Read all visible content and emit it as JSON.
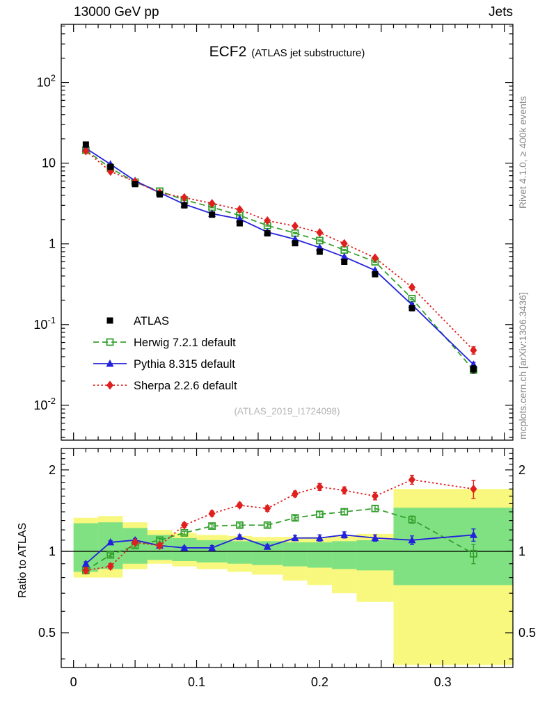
{
  "page": {
    "header_left": "13000 GeV pp",
    "header_right": "Jets",
    "side_top": "Rivet 4.1.0, ≥ 400k events",
    "side_bottom": "mcplots.cern.ch [arXiv:1306.3436]",
    "watermark": "(ATLAS_2019_I1724098)"
  },
  "chart_data": {
    "type": "line",
    "title": "ECF2",
    "subtitle": "(ATLAS jet substructure)",
    "x_range": [
      -0.01,
      0.357
    ],
    "x_minor_step": 0.01,
    "x_major_every": 5,
    "x_ticks": [
      {
        "v": 0,
        "label": "0"
      },
      {
        "v": 0.1,
        "label": "0.1"
      },
      {
        "v": 0.2,
        "label": "0.2"
      },
      {
        "v": 0.3,
        "label": "0.3"
      }
    ],
    "main_panel": {
      "ylog": true,
      "y_range": [
        0.0037,
        525
      ],
      "y_ticks": [
        {
          "v": 100,
          "label": "10^2"
        },
        {
          "v": 10,
          "label": "10"
        },
        {
          "v": 1,
          "label": "1"
        },
        {
          "v": 0.1,
          "label": "10^-1"
        },
        {
          "v": 0.01,
          "label": "10^-2"
        }
      ]
    },
    "ratio_panel": {
      "ylabel": "Ratio to ATLAS",
      "ylog": true,
      "y_range": [
        0.372,
        2.4
      ],
      "reference_y": 1,
      "y_ticks": [
        {
          "v": 2,
          "label": "2"
        },
        {
          "v": 1,
          "label": "1"
        },
        {
          "v": 0.5,
          "label": "0.5"
        }
      ],
      "y_minor_ticks": [
        0.4,
        0.6,
        0.7,
        0.8,
        0.9,
        1.1,
        1.2,
        1.3,
        1.4,
        1.5,
        1.6,
        1.7,
        1.8,
        1.9,
        2.1,
        2.2,
        2.3
      ]
    },
    "x": [
      0.01,
      0.03,
      0.05,
      0.07,
      0.09,
      0.1125,
      0.135,
      0.1575,
      0.18,
      0.2,
      0.22,
      0.245,
      0.275,
      0.325
    ],
    "series": [
      {
        "name": "ATLAS",
        "color": "#000000",
        "marker": "square-filled",
        "line": "none",
        "values": [
          17,
          9.0,
          5.5,
          4.1,
          3.0,
          2.3,
          1.8,
          1.35,
          1.02,
          0.8,
          0.6,
          0.42,
          0.16,
          0.028
        ],
        "errors": [
          1.0,
          0.5,
          0.3,
          0.25,
          0.18,
          0.13,
          0.1,
          0.08,
          0.06,
          0.05,
          0.04,
          0.03,
          0.012,
          0.003
        ],
        "ratio": [
          1,
          1,
          1,
          1,
          1,
          1,
          1,
          1,
          1,
          1,
          1,
          1,
          1,
          1
        ],
        "ratio_errors": [
          0,
          0,
          0,
          0,
          0,
          0,
          0,
          0,
          0,
          0,
          0,
          0,
          0,
          0
        ]
      },
      {
        "name": "Herwig 7.2.1 default",
        "color": "#35a02f",
        "marker": "square-open",
        "line": "dashed",
        "values": [
          14.5,
          8.7,
          5.8,
          4.5,
          3.5,
          2.85,
          2.25,
          1.69,
          1.36,
          1.1,
          0.84,
          0.6,
          0.21,
          0.0274
        ],
        "errors": [
          0.3,
          0.15,
          0.1,
          0.08,
          0.06,
          0.05,
          0.04,
          0.03,
          0.025,
          0.02,
          0.015,
          0.012,
          0.006,
          0.002
        ],
        "ratio": [
          0.85,
          0.97,
          1.05,
          1.1,
          1.17,
          1.24,
          1.25,
          1.25,
          1.33,
          1.37,
          1.4,
          1.44,
          1.31,
          0.98
        ],
        "ratio_errors": [
          0.015,
          0.015,
          0.015,
          0.015,
          0.015,
          0.02,
          0.02,
          0.02,
          0.025,
          0.03,
          0.03,
          0.035,
          0.04,
          0.08
        ]
      },
      {
        "name": "Pythia 8.315 default",
        "color": "#2222dd",
        "marker": "triangle-filled",
        "line": "solid",
        "values": [
          15.3,
          9.7,
          6.05,
          4.3,
          3.1,
          2.37,
          2.03,
          1.4,
          1.14,
          0.9,
          0.69,
          0.47,
          0.176,
          0.032
        ],
        "errors": [
          0.3,
          0.15,
          0.1,
          0.08,
          0.06,
          0.05,
          0.04,
          0.03,
          0.025,
          0.02,
          0.015,
          0.012,
          0.006,
          0.002
        ],
        "ratio": [
          0.9,
          1.08,
          1.1,
          1.05,
          1.03,
          1.03,
          1.13,
          1.04,
          1.12,
          1.12,
          1.15,
          1.12,
          1.1,
          1.15
        ],
        "ratio_errors": [
          0.015,
          0.015,
          0.015,
          0.015,
          0.015,
          0.02,
          0.02,
          0.02,
          0.025,
          0.03,
          0.03,
          0.03,
          0.04,
          0.06
        ]
      },
      {
        "name": "Sherpa 2.2.6 default",
        "color": "#e01f1f",
        "marker": "diamond-filled",
        "line": "dotted",
        "values": [
          14.2,
          7.9,
          5.9,
          4.3,
          3.75,
          3.17,
          2.66,
          1.94,
          1.66,
          1.38,
          1.01,
          0.67,
          0.29,
          0.048
        ],
        "errors": [
          0.3,
          0.15,
          0.1,
          0.08,
          0.07,
          0.06,
          0.05,
          0.045,
          0.04,
          0.04,
          0.03,
          0.025,
          0.012,
          0.005
        ],
        "ratio": [
          0.85,
          0.88,
          1.08,
          1.05,
          1.25,
          1.38,
          1.48,
          1.44,
          1.63,
          1.73,
          1.68,
          1.6,
          1.84,
          1.7
        ],
        "ratio_errors": [
          0.02,
          0.02,
          0.02,
          0.02,
          0.025,
          0.03,
          0.03,
          0.035,
          0.04,
          0.05,
          0.05,
          0.05,
          0.07,
          0.13
        ]
      }
    ],
    "bands": {
      "edges": [
        0,
        0.02,
        0.04,
        0.06,
        0.08,
        0.1,
        0.125,
        0.145,
        0.17,
        0.19,
        0.21,
        0.23,
        0.26,
        0.29,
        0.36
      ],
      "yellow": {
        "color": "#f8f87e",
        "lo": [
          0.8,
          0.8,
          0.86,
          0.9,
          0.88,
          0.86,
          0.84,
          0.82,
          0.78,
          0.75,
          0.7,
          0.65,
          0.38,
          0.38
        ],
        "hi": [
          1.33,
          1.35,
          1.28,
          1.2,
          1.17,
          1.15,
          1.14,
          1.13,
          1.13,
          1.13,
          1.14,
          1.16,
          1.7,
          1.7
        ]
      },
      "green": {
        "color": "#80e182",
        "lo": [
          0.84,
          0.86,
          0.9,
          0.93,
          0.92,
          0.91,
          0.9,
          0.89,
          0.88,
          0.87,
          0.86,
          0.85,
          0.75,
          0.75
        ],
        "hi": [
          1.27,
          1.28,
          1.22,
          1.15,
          1.12,
          1.1,
          1.09,
          1.09,
          1.08,
          1.08,
          1.09,
          1.1,
          1.45,
          1.45
        ]
      }
    }
  }
}
